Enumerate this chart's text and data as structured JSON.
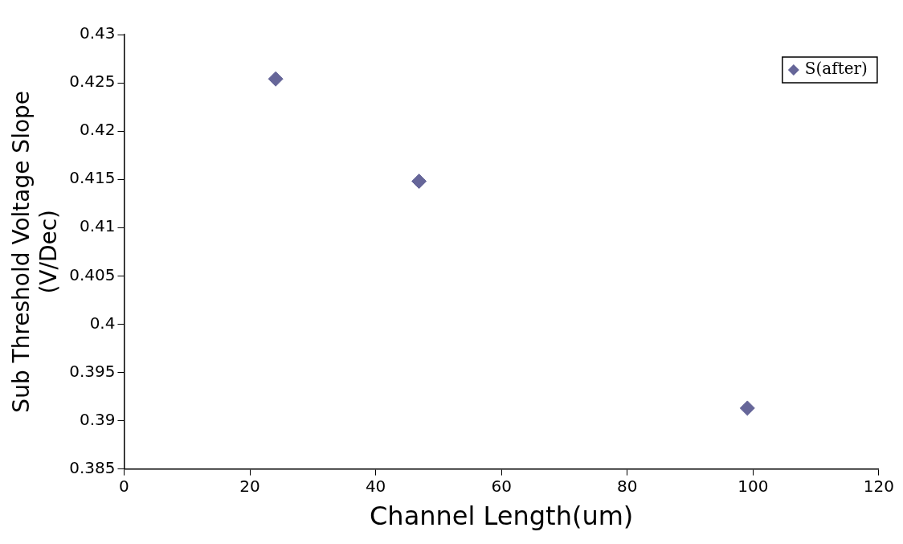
{
  "chart_data": {
    "type": "scatter",
    "xlabel": "Channel Length(um)",
    "ylabel": "Sub Threshold Voltage Slope\n(V/Dec)",
    "series": [
      {
        "name": "S(after)",
        "color": "#666699",
        "x": [
          24.1,
          46.9,
          99.1
        ],
        "values": [
          0.4254,
          0.4148,
          0.3913
        ]
      }
    ],
    "xlim": [
      0,
      120
    ],
    "xticks": [
      0,
      20,
      40,
      60,
      80,
      100,
      120
    ],
    "ylim": [
      0.385,
      0.43
    ],
    "yticks": [
      0.385,
      0.39,
      0.395,
      0.4,
      0.405,
      0.41,
      0.415,
      0.42,
      0.425,
      0.43
    ],
    "grid": false,
    "legend": "top right",
    "marker": "diamond"
  }
}
